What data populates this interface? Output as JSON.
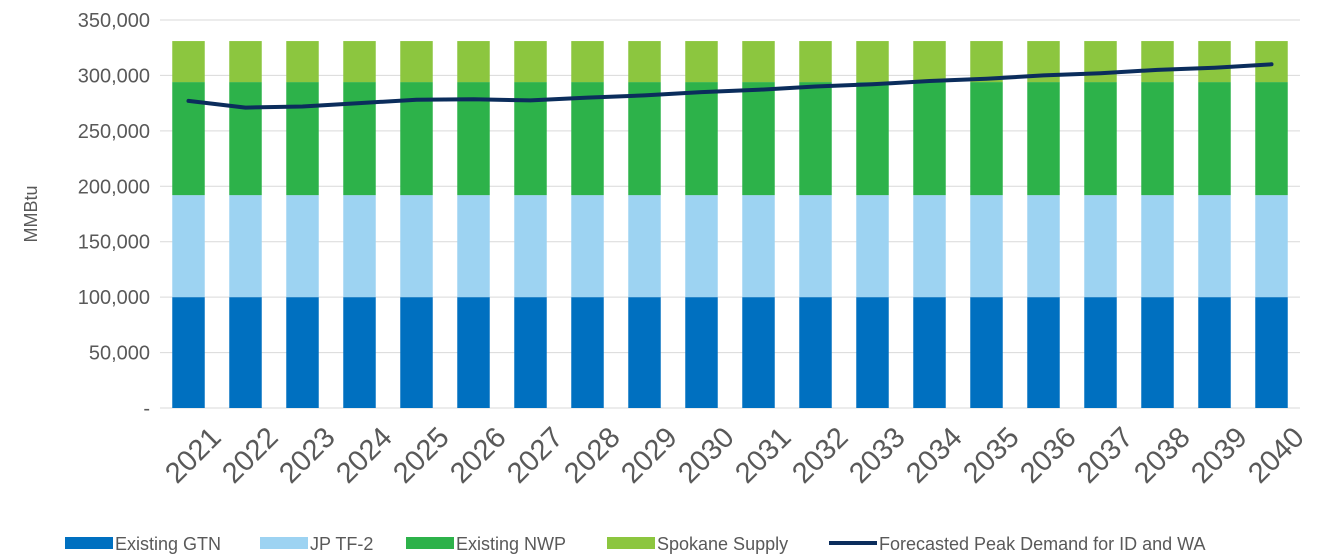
{
  "chart_data": {
    "type": "bar",
    "stacked": true,
    "categories": [
      "2021",
      "2022",
      "2023",
      "2024",
      "2025",
      "2026",
      "2027",
      "2028",
      "2029",
      "2030",
      "2031",
      "2032",
      "2033",
      "2034",
      "2035",
      "2036",
      "2037",
      "2038",
      "2039",
      "2040"
    ],
    "series": [
      {
        "name": "Existing GTN",
        "color": "#0070c0",
        "values": [
          100000,
          100000,
          100000,
          100000,
          100000,
          100000,
          100000,
          100000,
          100000,
          100000,
          100000,
          100000,
          100000,
          100000,
          100000,
          100000,
          100000,
          100000,
          100000,
          100000
        ]
      },
      {
        "name": "JP TF-2",
        "color": "#9dd3f2",
        "values": [
          92000,
          92000,
          92000,
          92000,
          92000,
          92000,
          92000,
          92000,
          92000,
          92000,
          92000,
          92000,
          92000,
          92000,
          92000,
          92000,
          92000,
          92000,
          92000,
          92000
        ]
      },
      {
        "name": "Existing NWP",
        "color": "#2db24a",
        "values": [
          102000,
          102000,
          102000,
          102000,
          102000,
          102000,
          102000,
          102000,
          102000,
          102000,
          102000,
          102000,
          102000,
          102000,
          102000,
          102000,
          102000,
          102000,
          102000,
          102000
        ]
      },
      {
        "name": "Spokane Supply",
        "color": "#8cc63f",
        "values": [
          37000,
          37000,
          37000,
          37000,
          37000,
          37000,
          37000,
          37000,
          37000,
          37000,
          37000,
          37000,
          37000,
          37000,
          37000,
          37000,
          37000,
          37000,
          37000,
          37000
        ]
      }
    ],
    "line_series": {
      "name": "Forecasted Peak Demand for ID and WA",
      "color": "#0b2d5c",
      "values": [
        277000,
        271000,
        272000,
        275000,
        278000,
        278500,
        277500,
        280000,
        282000,
        285000,
        287000,
        290000,
        292000,
        295000,
        297000,
        300000,
        302000,
        305000,
        307000,
        310000
      ]
    },
    "ylabel": "MMBtu",
    "ylim": [
      0,
      350000
    ],
    "yticks": [
      {
        "value": 0,
        "label": "-"
      },
      {
        "value": 50000,
        "label": "50,000"
      },
      {
        "value": 100000,
        "label": "100,000"
      },
      {
        "value": 150000,
        "label": "150,000"
      },
      {
        "value": 200000,
        "label": "200,000"
      },
      {
        "value": 250000,
        "label": "250,000"
      },
      {
        "value": 300000,
        "label": "300,000"
      },
      {
        "value": 350000,
        "label": "350,000"
      }
    ],
    "grid": true,
    "legend_position": "bottom"
  }
}
